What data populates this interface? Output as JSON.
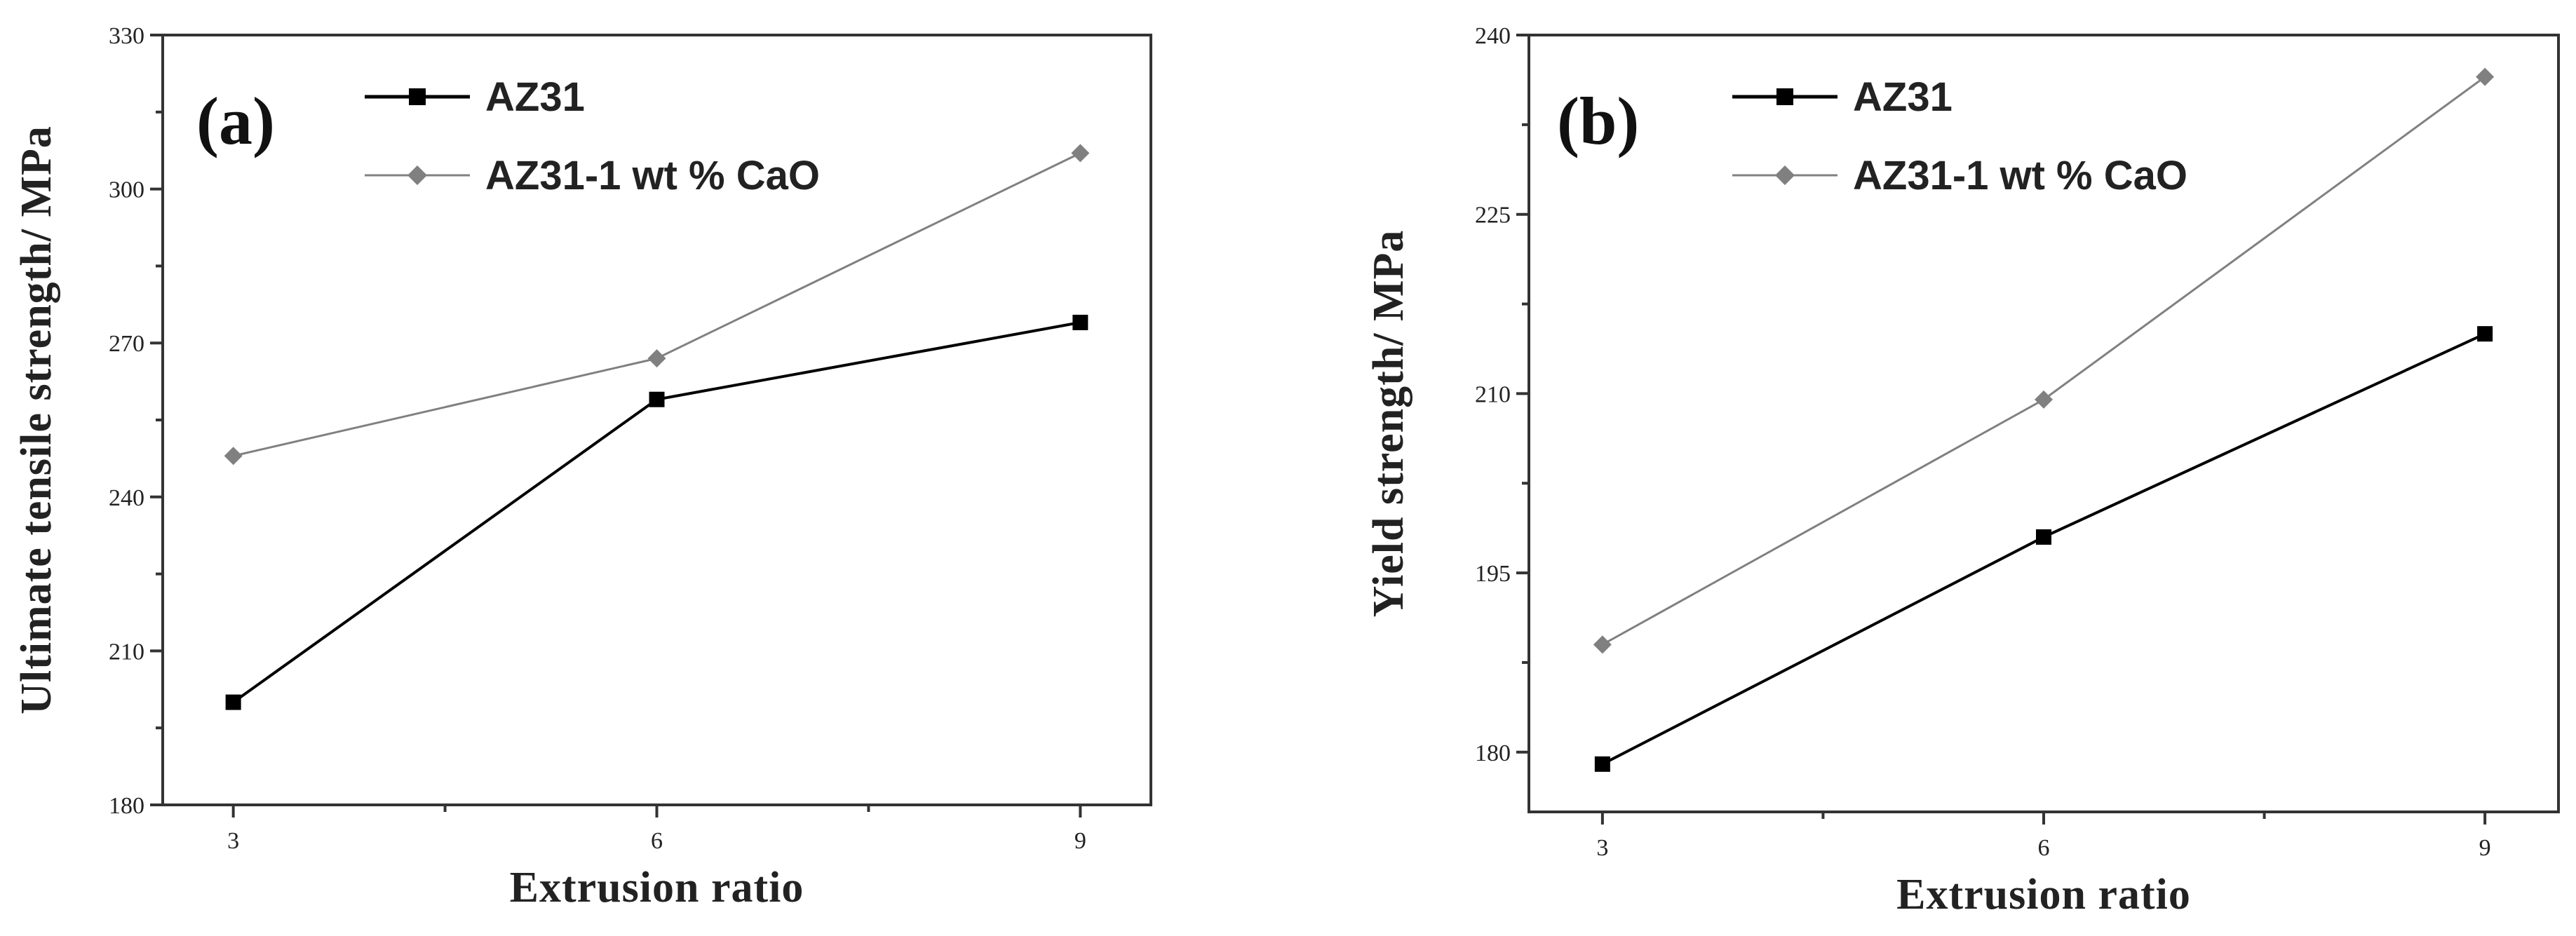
{
  "chart_data": [
    {
      "type": "line",
      "panel_label": "(a)",
      "xlabel": "Extrusion ratio",
      "ylabel": "Ultimate tensile strength/ MPa",
      "xlim": [
        2.5,
        9.5
      ],
      "ylim": [
        180,
        330
      ],
      "xticks": [
        3,
        6,
        9
      ],
      "yticks": [
        180,
        210,
        240,
        270,
        300,
        330
      ],
      "x": [
        3,
        6,
        9
      ],
      "legend_position": "top-left",
      "series": [
        {
          "name": "AZ31",
          "values": [
            200,
            259,
            274
          ],
          "color": "#000000",
          "marker": "square"
        },
        {
          "name": "AZ31-1 wt % CaO",
          "values": [
            248,
            267,
            307
          ],
          "color": "#808080",
          "marker": "diamond"
        }
      ]
    },
    {
      "type": "line",
      "panel_label": "(b)",
      "xlabel": "Extrusion ratio",
      "ylabel": "Yield strength/ MPa",
      "xlim": [
        2.5,
        9.5
      ],
      "ylim": [
        175,
        240
      ],
      "xticks": [
        3,
        6,
        9
      ],
      "yticks": [
        180,
        195,
        210,
        225,
        240
      ],
      "x": [
        3,
        6,
        9
      ],
      "legend_position": "top-left",
      "series": [
        {
          "name": "AZ31",
          "values": [
            179,
            198,
            215
          ],
          "color": "#000000",
          "marker": "square"
        },
        {
          "name": "AZ31-1 wt % CaO",
          "values": [
            189,
            209.5,
            236.5
          ],
          "color": "#808080",
          "marker": "diamond"
        }
      ]
    }
  ]
}
